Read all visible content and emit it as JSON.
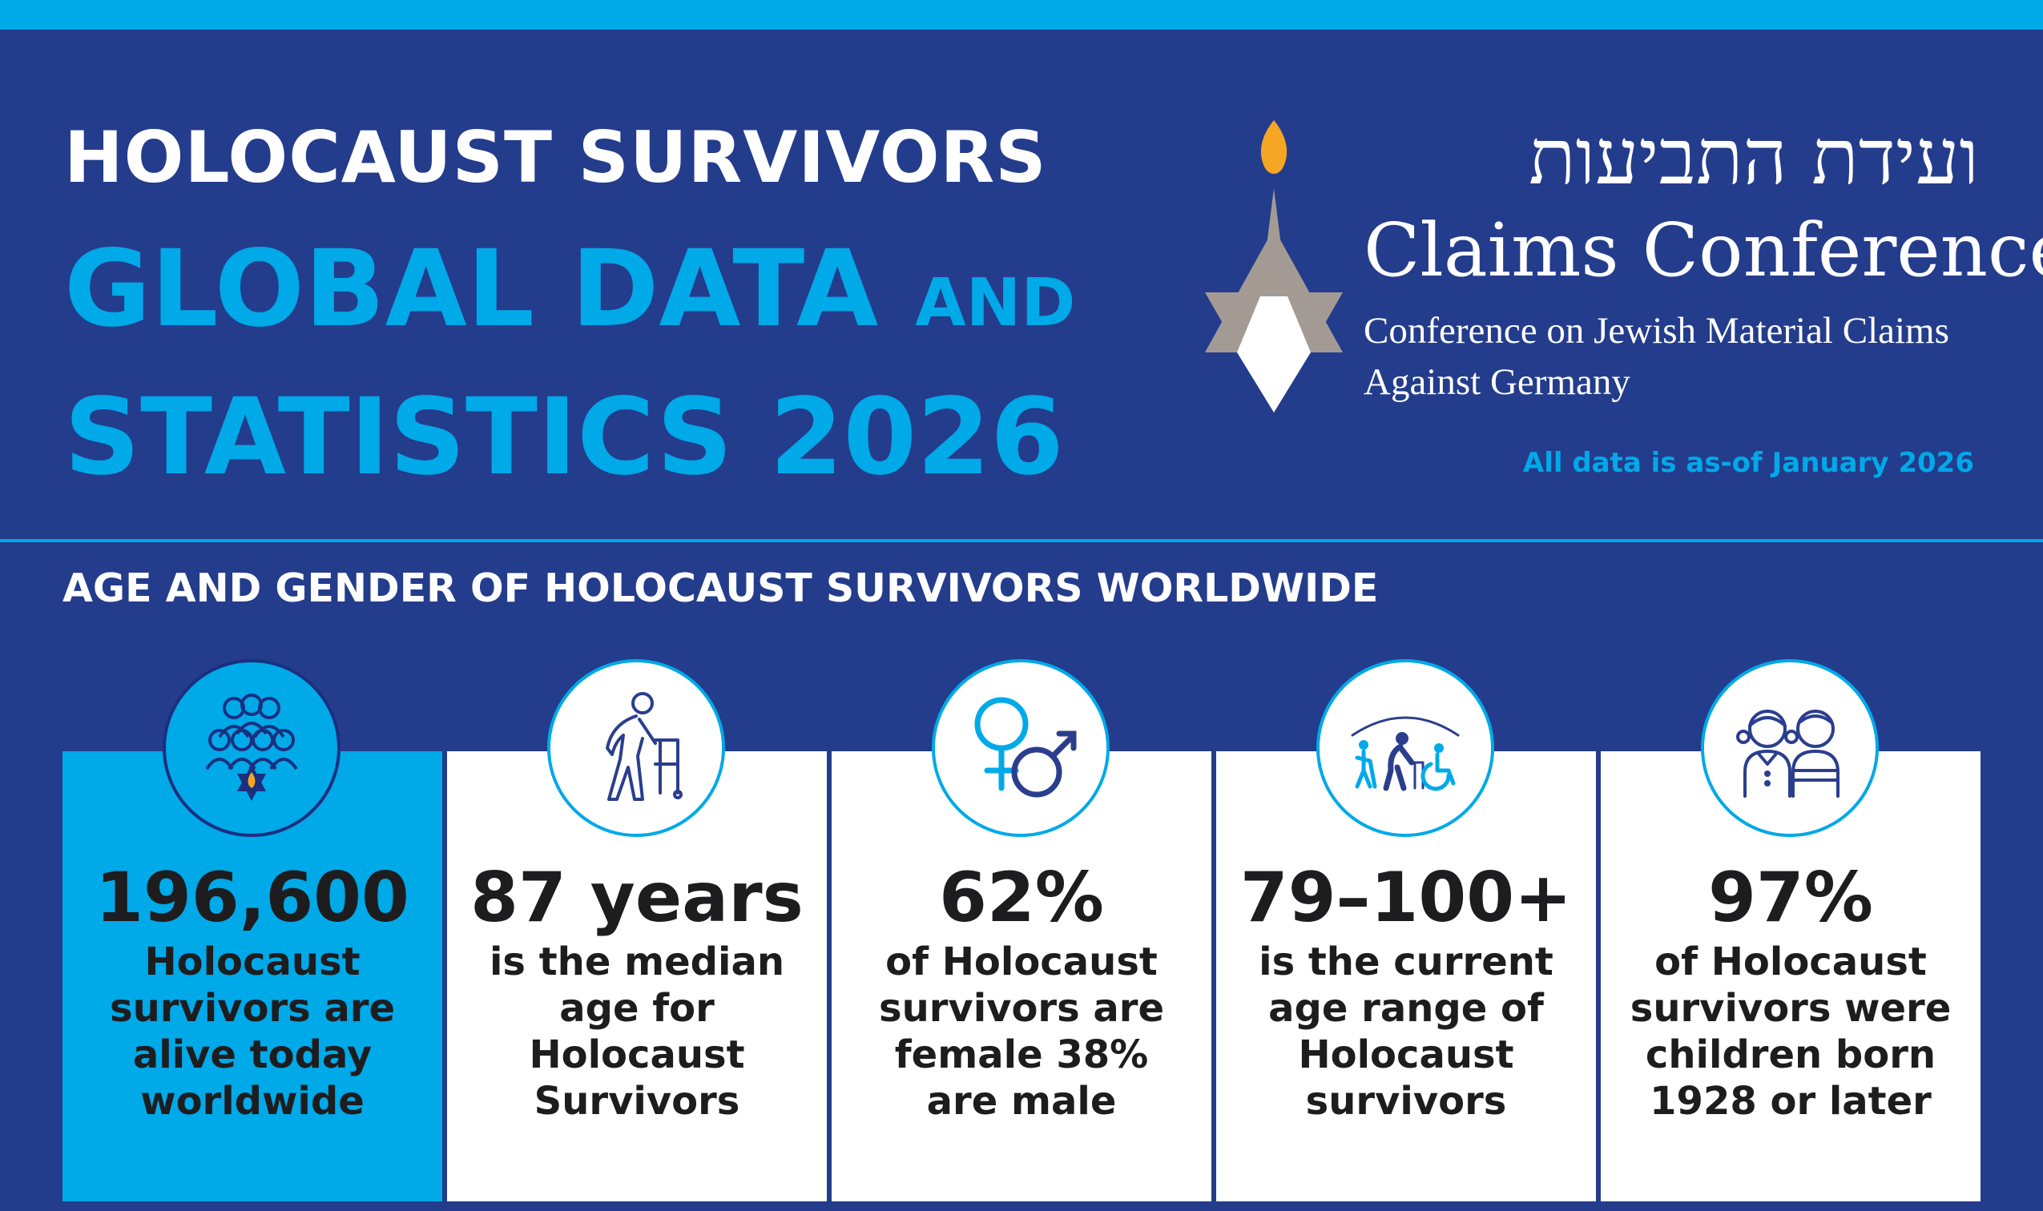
{
  "header": {
    "title_line1": "HOLOCAUST SURVIVORS",
    "title_line2_main": "GLOBAL DATA",
    "title_line2_small": "AND",
    "title_line3": "STATISTICS 2026"
  },
  "logo": {
    "hebrew": "ועידת התביעות",
    "name": "Claims Conference",
    "sub_line1": "Conference on Jewish Material Claims",
    "sub_line2": "Against Germany",
    "as_of": "All data is as-of January 2026"
  },
  "section": {
    "heading": "AGE AND GENDER OF HOLOCAUST SURVIVORS WORLDWIDE"
  },
  "cards": [
    {
      "icon": "group-with-flame-icon",
      "stat": "196,600",
      "lines": [
        "Holocaust",
        "survivors are",
        "alive today",
        "worldwide"
      ]
    },
    {
      "icon": "elderly-walker-icon",
      "stat": "87 years",
      "lines": [
        "is the median",
        "age for",
        "Holocaust",
        "Survivors"
      ]
    },
    {
      "icon": "gender-symbols-icon",
      "stat": "62%",
      "lines": [
        "of Holocaust",
        "survivors are",
        "female 38%",
        "are male"
      ]
    },
    {
      "icon": "age-range-people-icon",
      "stat": "79–100+",
      "lines": [
        "is the current",
        "age range of",
        "Holocaust",
        "survivors"
      ]
    },
    {
      "icon": "children-icon",
      "stat": "97%",
      "lines": [
        "of Holocaust",
        "survivors were",
        "children born",
        "1928 or later"
      ]
    }
  ],
  "colors": {
    "background": "#243c8c",
    "accent": "#00a9e8",
    "card": "#ffffff",
    "text_dark": "#1d1d1f",
    "flame": "#f5a623",
    "logo_gray": "#a39b93"
  }
}
